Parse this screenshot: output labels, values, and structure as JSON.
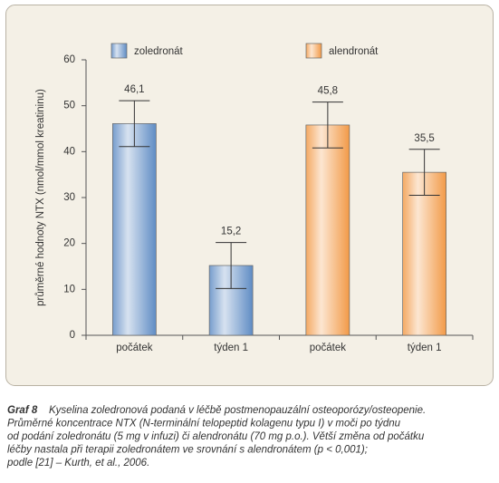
{
  "chart_data": {
    "type": "bar",
    "y_label": "průměrné hodnoty NTX (nmol/mmol kreatininu)",
    "categories": [
      "počátek",
      "týden 1",
      "počátek",
      "týden 1"
    ],
    "series": [
      {
        "name": "zoledronát",
        "color": "#5f8cc4",
        "values": [
          46.1,
          15.2,
          null,
          null
        ],
        "value_labels": [
          "46,1",
          "15,2",
          null,
          null
        ],
        "errors": [
          5,
          5,
          null,
          null
        ]
      },
      {
        "name": "alendronát",
        "color": "#f29a48",
        "values": [
          null,
          null,
          45.8,
          35.5
        ],
        "value_labels": [
          null,
          null,
          "45,8",
          "35,5"
        ],
        "errors": [
          null,
          null,
          5,
          5
        ]
      }
    ],
    "ylim": [
      0,
      60
    ],
    "yticks": [
      0,
      10,
      20,
      30,
      40,
      50,
      60
    ],
    "grid": false
  },
  "caption": {
    "label": "Graf 8",
    "lines": [
      "Kyselina zoledronová podaná v léčbě postmenopauzální osteoporózy/osteopenie.",
      "Průměrné koncentrace NTX (N-terminální telopeptid kolagenu typu I) v moči po týdnu",
      "od podání zoledronátu (5 mg v infuzi) či alendronátu (70 mg p.o.). Větší změna od počátku",
      "léčby nastala při terapii zoledronátem ve srovnání s alendronátem (p < 0,001);",
      "podle [21] – Kurth, et al., 2006."
    ]
  }
}
